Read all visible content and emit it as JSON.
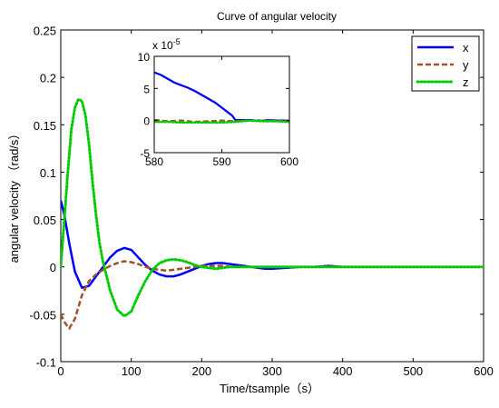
{
  "chart_data": [
    {
      "type": "line",
      "title": "Curve of angular velocity",
      "xlabel": "Time/tsample（s）",
      "ylabel": "angular velocity （rad/s）",
      "xlim": [
        0,
        600
      ],
      "ylim": [
        -0.1,
        0.25
      ],
      "xticks": [
        0,
        100,
        200,
        300,
        400,
        500,
        600
      ],
      "yticks": [
        -0.1,
        -0.05,
        0,
        0.05,
        0.1,
        0.15,
        0.2,
        0.25
      ],
      "xtick_labels": [
        "0",
        "100",
        "200",
        "300",
        "400",
        "500",
        "600"
      ],
      "ytick_labels": [
        "-0.1",
        "-0.05",
        "0",
        "0.05",
        "0.1",
        "0.15",
        "0.2",
        "0.25"
      ],
      "grid": false,
      "legend": "top-right",
      "series": [
        {
          "name": "x",
          "color": "#0000ff",
          "style": "solid",
          "x": [
            0,
            5,
            12,
            20,
            30,
            40,
            50,
            60,
            70,
            80,
            90,
            100,
            110,
            120,
            130,
            140,
            150,
            160,
            170,
            180,
            190,
            200,
            210,
            220,
            230,
            240,
            250,
            260,
            270,
            280,
            290,
            300,
            320,
            340,
            360,
            380,
            400,
            450,
            500,
            550,
            600
          ],
          "values": [
            0.07,
            0.055,
            0.025,
            -0.005,
            -0.022,
            -0.02,
            -0.01,
            0.0,
            0.01,
            0.017,
            0.02,
            0.018,
            0.01,
            0.002,
            -0.004,
            -0.008,
            -0.01,
            -0.01,
            -0.008,
            -0.005,
            -0.002,
            0.001,
            0.003,
            0.004,
            0.004,
            0.003,
            0.002,
            0.001,
            0.0,
            -0.001,
            -0.002,
            -0.002,
            -0.001,
            0.0,
            0.0,
            0.001,
            0.0,
            0.0,
            0.0,
            0.0,
            0.0
          ]
        },
        {
          "name": "y",
          "color": "#a0522d",
          "style": "dashed",
          "x": [
            0,
            5,
            12,
            20,
            30,
            40,
            50,
            60,
            70,
            80,
            90,
            100,
            110,
            120,
            130,
            140,
            150,
            160,
            170,
            180,
            190,
            200,
            210,
            220,
            230,
            240,
            250,
            260,
            270,
            280,
            290,
            300,
            320,
            340,
            360,
            380,
            400,
            450,
            500,
            550,
            600
          ],
          "values": [
            -0.05,
            -0.058,
            -0.065,
            -0.055,
            -0.03,
            -0.015,
            -0.008,
            -0.003,
            0.001,
            0.004,
            0.006,
            0.005,
            0.003,
            0.0,
            -0.002,
            -0.003,
            -0.004,
            -0.003,
            -0.002,
            -0.001,
            0.0,
            0.001,
            0.001,
            0.001,
            0.001,
            0.0,
            0.0,
            0.0,
            0.0,
            0.0,
            0.0,
            0.0,
            0.0,
            0.0,
            0.0,
            0.0,
            0.0,
            0.0,
            0.0,
            0.0,
            0.0
          ]
        },
        {
          "name": "z",
          "color": "#00cc00",
          "style": "dotted",
          "x": [
            0,
            5,
            10,
            15,
            20,
            25,
            30,
            35,
            40,
            45,
            50,
            55,
            60,
            70,
            80,
            90,
            100,
            110,
            120,
            130,
            140,
            150,
            160,
            170,
            180,
            190,
            200,
            210,
            220,
            230,
            240,
            250,
            260,
            280,
            300,
            350,
            400,
            500,
            600
          ],
          "values": [
            0.0,
            0.05,
            0.1,
            0.145,
            0.168,
            0.177,
            0.175,
            0.16,
            0.13,
            0.09,
            0.055,
            0.025,
            0.005,
            -0.025,
            -0.045,
            -0.052,
            -0.047,
            -0.03,
            -0.015,
            -0.003,
            0.004,
            0.007,
            0.008,
            0.007,
            0.005,
            0.002,
            0.0,
            -0.001,
            -0.002,
            -0.001,
            0.0,
            0.0,
            0.0,
            0.0,
            0.0,
            0.0,
            0.0,
            0.0,
            0.0
          ]
        }
      ]
    },
    {
      "type": "line",
      "title": "",
      "xlim": [
        580,
        600
      ],
      "ylim": [
        -5,
        10
      ],
      "xticks": [
        580,
        590,
        600
      ],
      "yticks": [
        -5,
        0,
        5,
        10
      ],
      "xtick_labels": [
        "580",
        "590",
        "600"
      ],
      "ytick_labels": [
        "-5",
        "0",
        "5",
        "10"
      ],
      "y_multiplier": "x 10",
      "y_multiplier_exp": "-5",
      "grid": false,
      "series": [
        {
          "name": "x",
          "color": "#0000ff",
          "style": "solid",
          "x": [
            580,
            581,
            582,
            583,
            584,
            585,
            586,
            587,
            588,
            589,
            590,
            591,
            591.5,
            592,
            593,
            594,
            595,
            596,
            597,
            598,
            599,
            600
          ],
          "values": [
            7.5,
            7.1,
            6.5,
            5.9,
            5.5,
            5.1,
            4.6,
            4.0,
            3.4,
            2.8,
            2.0,
            1.2,
            0.8,
            0.1,
            0.05,
            0.1,
            0.0,
            0.0,
            0.05,
            0.0,
            0.0,
            -0.05
          ]
        },
        {
          "name": "y",
          "color": "#a0522d",
          "style": "dashed",
          "x": [
            580,
            582,
            584,
            586,
            588,
            590,
            592,
            594,
            596,
            598,
            600
          ],
          "values": [
            0.1,
            -0.1,
            0.0,
            -0.2,
            -0.1,
            0.0,
            -0.1,
            0.0,
            0.0,
            -0.1,
            0.0
          ]
        },
        {
          "name": "z",
          "color": "#00cc00",
          "style": "dotted",
          "x": [
            580,
            582,
            584,
            586,
            588,
            590,
            592,
            594,
            596,
            598,
            600
          ],
          "values": [
            -0.2,
            -0.2,
            -0.3,
            -0.3,
            -0.3,
            -0.3,
            -0.2,
            0.0,
            -0.1,
            -0.1,
            -0.2
          ]
        }
      ]
    }
  ]
}
